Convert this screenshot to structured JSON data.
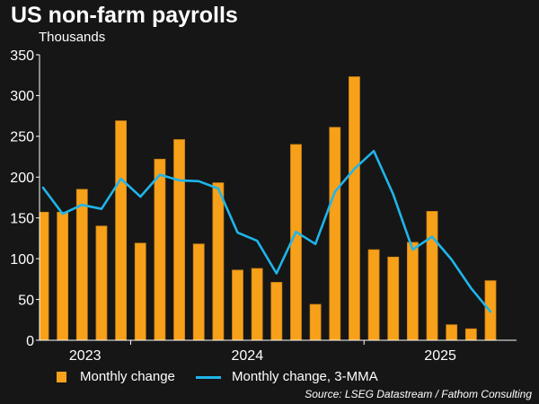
{
  "source": "Source: LSEG Datastream / Fathom Consulting",
  "colors": {
    "background": "#161616",
    "text": "#ffffff",
    "axis": "#ffffff",
    "bar": "#f7a11a",
    "bar_edge": "#cf8412",
    "line": "#1fb5ea"
  },
  "chart_data": {
    "type": "bar",
    "title": "US non-farm payrolls",
    "subtitle": "Thousands",
    "ylim": [
      0,
      350
    ],
    "yticks": [
      0,
      50,
      100,
      150,
      200,
      250,
      300,
      350
    ],
    "year_labels": [
      "2023",
      "2024",
      "2025"
    ],
    "x": [
      "2023-08",
      "2023-09",
      "2023-10",
      "2023-11",
      "2023-12",
      "2024-01",
      "2024-02",
      "2024-03",
      "2024-04",
      "2024-05",
      "2024-06",
      "2024-07",
      "2024-08",
      "2024-09",
      "2024-10",
      "2024-11",
      "2024-12",
      "2025-01",
      "2025-02",
      "2025-03",
      "2025-04",
      "2025-05",
      "2025-06",
      "2025-07"
    ],
    "series": [
      {
        "name": "Monthly change",
        "type": "bar",
        "values": [
          157,
          157,
          185,
          140,
          269,
          119,
          222,
          246,
          118,
          193,
          86,
          88,
          71,
          240,
          44,
          261,
          323,
          111,
          102,
          120,
          158,
          19,
          14,
          73
        ]
      },
      {
        "name": "Monthly change, 3-MMA",
        "type": "line",
        "values": [
          187,
          155,
          166,
          161,
          198,
          176,
          203,
          196,
          195,
          186,
          132,
          122,
          82,
          133,
          118,
          182,
          210,
          232,
          179,
          111,
          127,
          99,
          64,
          35
        ]
      }
    ],
    "grid": false,
    "legend_placement": "bottom"
  }
}
